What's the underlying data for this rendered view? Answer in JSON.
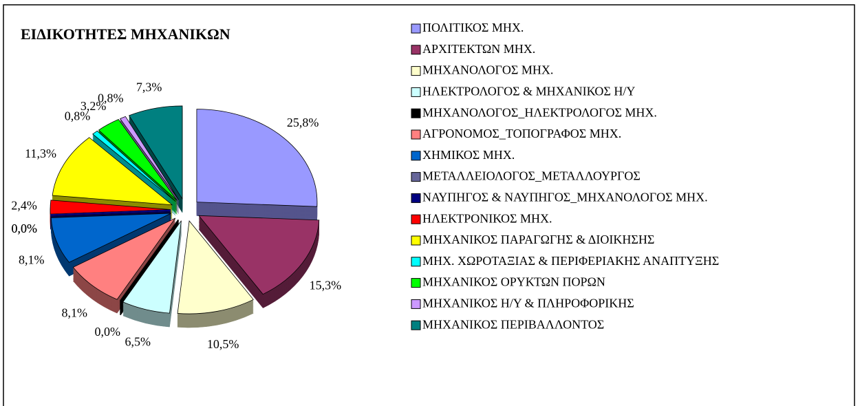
{
  "chart_data": {
    "type": "pie",
    "title": "ΕΙΔΙΚΟΤΗΤΕΣ ΜΗΧΑΝΙΚΩΝ",
    "categories": [
      "ΠΟΛΙΤΙΚΟΣ ΜΗΧ.",
      "ΑΡΧΙΤΕΚΤΩΝ ΜΗΧ.",
      "ΜΗΧΑΝΟΛΟΓΟΣ ΜΗΧ.",
      "ΗΛΕΚΤΡΟΛΟΓΟΣ & ΜΗΧΑΝΙΚΟΣ Η/Υ",
      "ΜΗΧΑΝΟΛΟΓΟΣ_ΗΛΕΚΤΡΟΛΟΓΟΣ ΜΗΧ.",
      "ΑΓΡΟΝΟΜΟΣ_ΤΟΠΟΓΡΑΦΟΣ ΜΗΧ.",
      "ΧΗΜΙΚΟΣ ΜΗΧ.",
      "ΜΕΤΑΛΛΕΙΟΛΟΓΟΣ_ΜΕΤΑΛΛΟΥΡΓΟΣ",
      "ΝΑΥΠΗΓΟΣ & ΝΑΥΠΗΓΟΣ_ΜΗΧΑΝΟΛΟΓΟΣ ΜΗΧ.",
      "ΗΛΕΚΤΡΟΝΙΚΟΣ ΜΗΧ.",
      "ΜΗΧΑΝΙΚΟΣ ΠΑΡΑΓΩΓΗΣ & ΔΙΟΙΚΗΣΗΣ",
      "ΜΗΧ. ΧΩΡΟΤΑΞΙΑΣ & ΠΕΡΙΦΕΡΙΑΚΗΣ ΑΝΑΠΤΥΞΗΣ",
      "ΜΗΧΑΝΙΚΟΣ ΟΡΥΚΤΩΝ ΠΟΡΩΝ",
      "ΜΗΧΑΝΙΚΟΣ Η/Υ & ΠΛΗΡΟΦΟΡΙΚΗΣ",
      "ΜΗΧΑΝΙΚΟΣ ΠΕΡΙΒΑΛΛΟΝΤΟΣ"
    ],
    "values": [
      25.8,
      15.3,
      10.5,
      6.5,
      0.0,
      8.1,
      8.1,
      0.0,
      0.0,
      2.4,
      11.3,
      0.8,
      3.2,
      0.8,
      7.3
    ],
    "value_labels": [
      "25,8%",
      "15,3%",
      "10,5%",
      "6,5%",
      "0,0%",
      "8,1%",
      "8,1%",
      "0,0%",
      "0,0%",
      "2,4%",
      "11,3%",
      "0,8%",
      "3,2%",
      "0,8%",
      "7,3%"
    ],
    "colors": [
      "#9999FF",
      "#993366",
      "#FFFFCC",
      "#CCFFFF",
      "#000000",
      "#FF8080",
      "#0066CC",
      "#666699",
      "#000080",
      "#FF0000",
      "#FFFF00",
      "#00FFFF",
      "#00FF00",
      "#CC99FF",
      "#008080"
    ]
  }
}
